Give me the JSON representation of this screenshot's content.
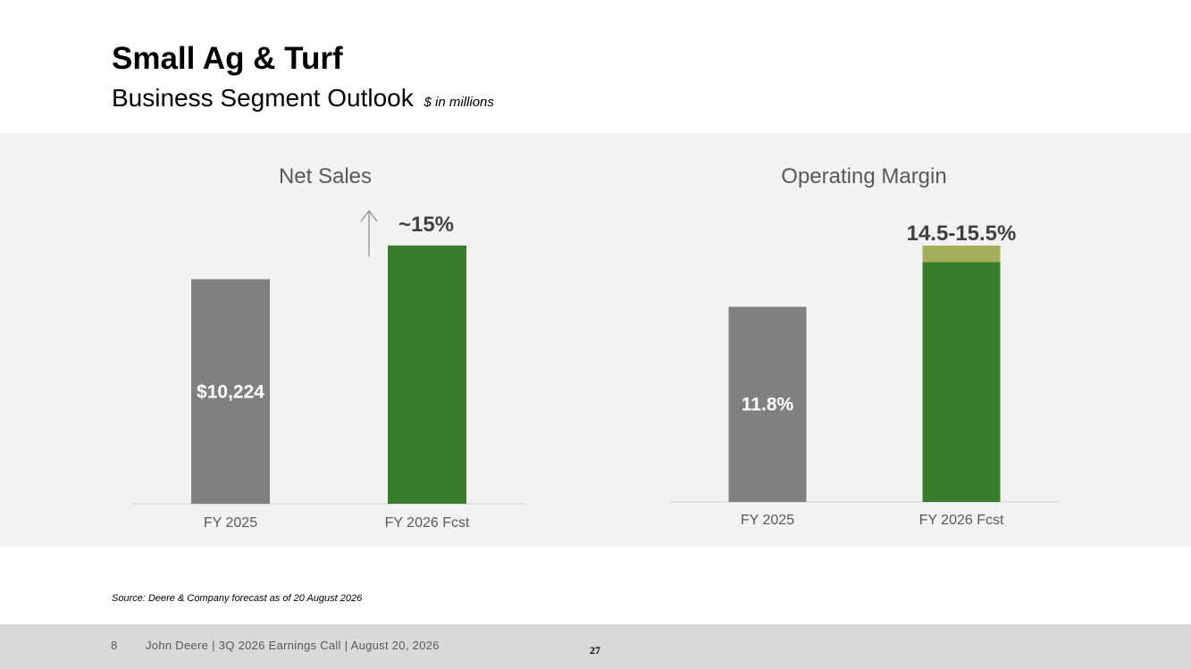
{
  "header": {
    "title": "Small Ag & Turf",
    "subtitle": "Business Segment Outlook",
    "unit_note": "$ in millions"
  },
  "colors": {
    "actual_bar": "#808080",
    "forecast_bar": "#367c2b",
    "forecast_range": "#a6ae5b",
    "chart_title": "#595959",
    "annotation": "#404040",
    "panel_bg": "#f2f2f2"
  },
  "chart_data": [
    {
      "type": "bar",
      "title": "Net Sales",
      "categories": [
        "FY 2025",
        "FY 2026 Fcst"
      ],
      "values": [
        10224,
        11758
      ],
      "bar_labels": [
        "$10,224",
        ""
      ],
      "annotation": "~15%",
      "annotation_icon": "up-arrow-icon",
      "ylim": [
        0,
        12200
      ],
      "xlabel": "",
      "ylabel": ""
    },
    {
      "type": "bar",
      "title": "Operating Margin",
      "categories": [
        "FY 2025",
        "FY 2026 Fcst"
      ],
      "values": [
        11.8,
        14.5
      ],
      "range": [
        14.5,
        15.5
      ],
      "bar_labels": [
        "11.8%",
        ""
      ],
      "annotation": "14.5-15.5%",
      "ylim": [
        0,
        16.2
      ],
      "xlabel": "",
      "ylabel": ""
    }
  ],
  "source_note": "Source: Deere & Company forecast as of 20 August 2026",
  "footer": {
    "page_number": "8",
    "text": "John Deere | 3Q 2026 Earnings Call | August 20, 2026",
    "slide_number": "27"
  }
}
